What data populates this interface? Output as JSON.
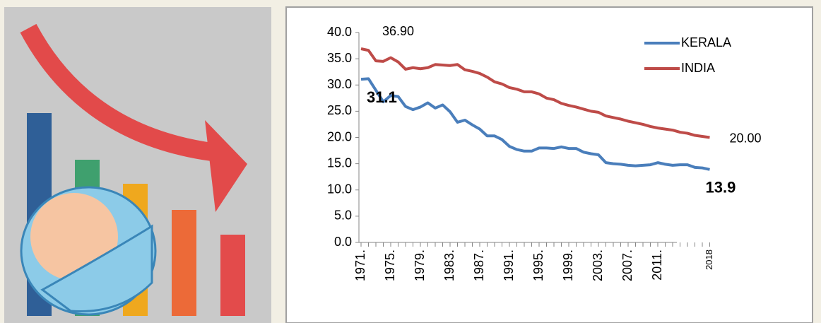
{
  "chart_data": {
    "type": "line",
    "categories": [
      "1971.",
      null,
      null,
      null,
      "1975.",
      null,
      null,
      null,
      "1979.",
      null,
      null,
      null,
      "1983.",
      null,
      null,
      null,
      "1987.",
      null,
      null,
      null,
      "1991.",
      null,
      null,
      null,
      "1995.",
      null,
      null,
      null,
      "1999.",
      null,
      null,
      null,
      "2003.",
      null,
      null,
      null,
      "2007.",
      null,
      null,
      null,
      "2011.",
      null,
      null,
      null,
      null,
      null,
      null,
      "2018"
    ],
    "series": [
      {
        "name": "KERALA",
        "color": "#4a7ebb",
        "values": [
          31.1,
          31.2,
          29.0,
          26.8,
          28.0,
          27.8,
          25.9,
          25.3,
          25.8,
          26.6,
          25.6,
          26.2,
          24.9,
          22.9,
          23.3,
          22.4,
          21.6,
          20.3,
          20.3,
          19.6,
          18.3,
          17.7,
          17.4,
          17.4,
          18.0,
          18.0,
          17.9,
          18.2,
          17.9,
          17.9,
          17.2,
          16.9,
          16.7,
          15.2,
          15.0,
          14.9,
          14.7,
          14.6,
          14.7,
          14.8,
          15.2,
          14.9,
          14.7,
          14.8,
          14.8,
          14.3,
          14.2,
          13.9
        ],
        "value_labels": [
          "31.1",
          null,
          null,
          null,
          null,
          null,
          null,
          null,
          null,
          null,
          null,
          null,
          null,
          null,
          null,
          null,
          null,
          null,
          null,
          null,
          null,
          null,
          null,
          null,
          null,
          null,
          null,
          null,
          null,
          null,
          null,
          null,
          null,
          null,
          null,
          null,
          null,
          null,
          null,
          null,
          null,
          null,
          null,
          null,
          null,
          null,
          null,
          "13.9"
        ]
      },
      {
        "name": "INDIA",
        "color": "#be4b48",
        "values": [
          36.9,
          36.6,
          34.6,
          34.5,
          35.2,
          34.4,
          33.0,
          33.3,
          33.1,
          33.3,
          33.9,
          33.8,
          33.7,
          33.9,
          32.9,
          32.6,
          32.2,
          31.5,
          30.6,
          30.2,
          29.5,
          29.2,
          28.7,
          28.7,
          28.3,
          27.5,
          27.2,
          26.5,
          26.1,
          25.8,
          25.4,
          25.0,
          24.8,
          24.1,
          23.8,
          23.5,
          23.1,
          22.8,
          22.5,
          22.1,
          21.8,
          21.6,
          21.4,
          21.0,
          20.8,
          20.4,
          20.2,
          20.0
        ],
        "value_labels": [
          "36.90",
          null,
          null,
          null,
          null,
          null,
          null,
          null,
          null,
          null,
          null,
          null,
          null,
          null,
          null,
          null,
          null,
          null,
          null,
          null,
          null,
          null,
          null,
          null,
          null,
          null,
          null,
          null,
          null,
          null,
          null,
          null,
          null,
          null,
          null,
          null,
          null,
          null,
          null,
          null,
          null,
          null,
          null,
          null,
          null,
          null,
          null,
          "20.00"
        ]
      }
    ],
    "ylim": [
      0,
      40
    ],
    "yticks": [
      {
        "value": 0,
        "label": "0.0"
      },
      {
        "value": 5,
        "label": "5.0"
      },
      {
        "value": 10,
        "label": "10.0"
      },
      {
        "value": 15,
        "label": "15.0"
      },
      {
        "value": 20,
        "label": "20.0"
      },
      {
        "value": 25,
        "label": "25.0"
      },
      {
        "value": 30,
        "label": "30.0"
      },
      {
        "value": 35,
        "label": "35.0"
      },
      {
        "value": 40,
        "label": "40.0"
      }
    ],
    "grid": false,
    "legend": "upper right"
  }
}
